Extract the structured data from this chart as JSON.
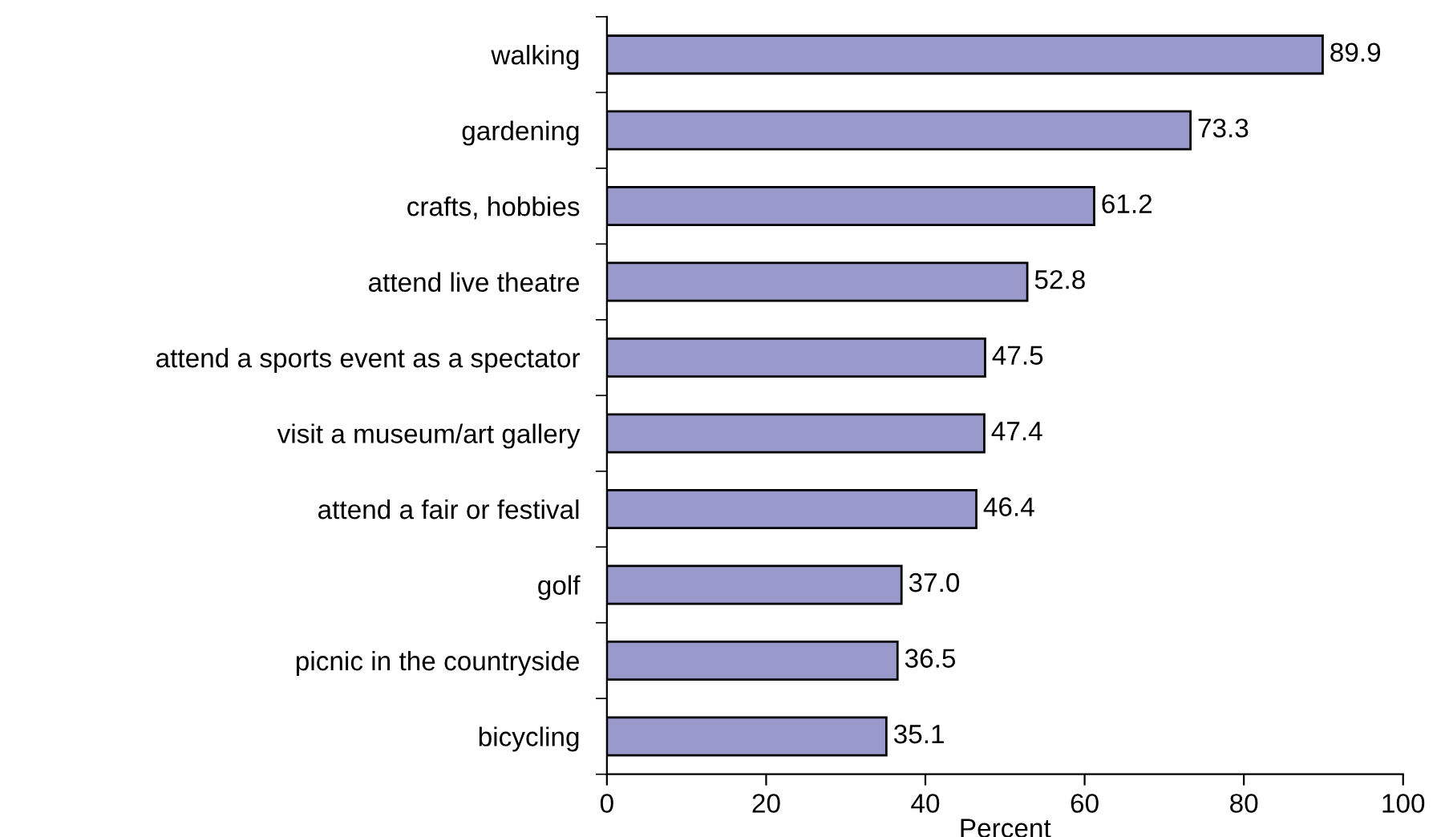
{
  "chart_data": {
    "type": "bar",
    "orientation": "horizontal",
    "xlabel": "Percent",
    "categories": [
      "walking",
      "gardening",
      "crafts, hobbies",
      "attend live theatre",
      "attend a sports event as a spectator",
      "visit a museum/art gallery",
      "attend a fair or festival",
      "golf",
      "picnic in the countryside",
      "bicycling"
    ],
    "values": [
      89.9,
      73.3,
      61.2,
      52.8,
      47.5,
      47.4,
      46.4,
      37.0,
      36.5,
      35.1
    ],
    "color": "#9999cc",
    "xlim": [
      0,
      100
    ],
    "xticks": [
      0,
      20,
      40,
      60,
      80,
      100
    ],
    "grid": false,
    "value_labels": [
      "89.9",
      "73.3",
      "61.2",
      "52.8",
      "47.5",
      "47.4",
      "46.4",
      "37.0",
      "36.5",
      "35.1"
    ]
  }
}
